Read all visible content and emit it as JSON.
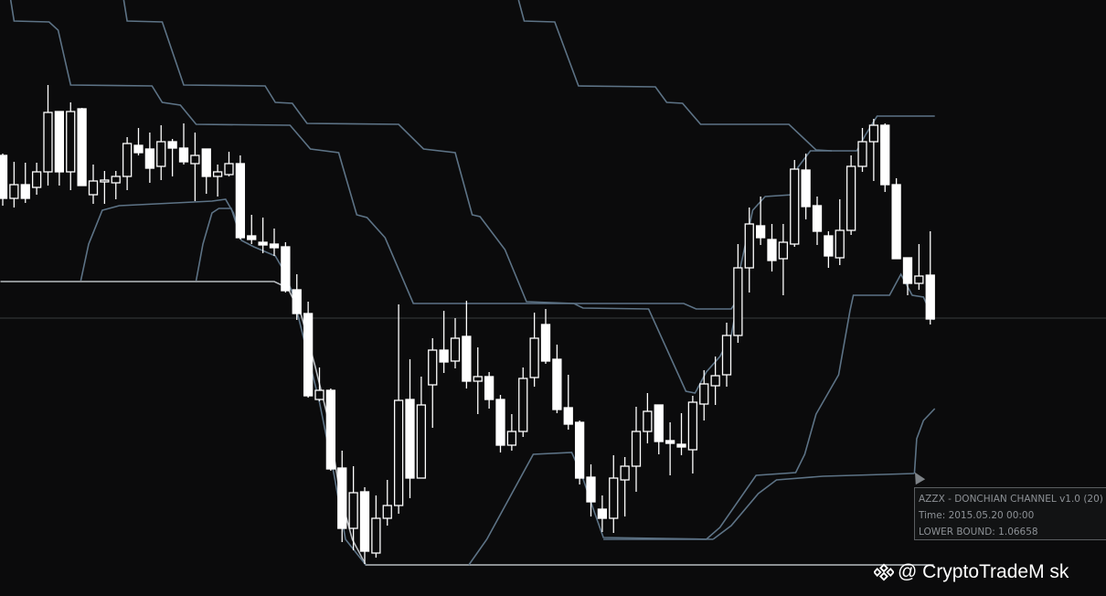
{
  "tooltip": {
    "title": "AZZX - DONCHIAN CHANNEL v1.0 (20)",
    "time": "Time: 2015.05.20 00:00",
    "lower_bound": "LOWER BOUND: 1.06658"
  },
  "watermark": {
    "icon": "binance-diamond-icon",
    "text": "@ CryptoTradeM  sk"
  },
  "colors": {
    "background": "#0b0b0c",
    "candle": "#ffffff",
    "band": "#5d7386",
    "base_line": "#b8bcc0",
    "price_line": "#3a3c3e"
  },
  "chart_data": {
    "type": "candlestick",
    "grid": false,
    "legend": "none",
    "x_unit": "bar index",
    "ylim": [
      1.0534,
      1.1186
    ],
    "price_line": 1.0838,
    "candles_ohlc": [
      [
        1.1016,
        1.1018,
        1.0961,
        1.0969
      ],
      [
        1.0969,
        1.1009,
        1.0959,
        1.0984
      ],
      [
        1.0984,
        1.1008,
        1.0964,
        1.0969
      ],
      [
        1.0981,
        1.1008,
        1.0973,
        1.0998
      ],
      [
        1.0998,
        1.1093,
        1.0983,
        1.1063
      ],
      [
        1.1064,
        1.1064,
        1.0983,
        1.0998
      ],
      [
        1.0998,
        1.1074,
        1.0978,
        1.1064
      ],
      [
        1.1067,
        1.1068,
        1.0983,
        1.0983
      ],
      [
        1.0973,
        1.1006,
        1.0963,
        1.0988
      ],
      [
        1.0987,
        1.0999,
        1.0963,
        1.0989
      ],
      [
        1.0986,
        1.0999,
        1.0968,
        1.0993
      ],
      [
        1.0993,
        1.1036,
        1.0978,
        1.1029
      ],
      [
        1.1027,
        1.1046,
        1.1016,
        1.1019
      ],
      [
        1.1023,
        1.1041,
        1.0986,
        1.1002
      ],
      [
        1.1004,
        1.1049,
        1.0989,
        1.1031
      ],
      [
        1.1031,
        1.1034,
        1.0993,
        1.1024
      ],
      [
        1.1024,
        1.1051,
        1.1006,
        1.1009
      ],
      [
        1.1007,
        1.1041,
        1.0966,
        1.1016
      ],
      [
        1.1023,
        1.1023,
        1.0974,
        1.0993
      ],
      [
        1.0993,
        1.1006,
        1.0971,
        1.0998
      ],
      [
        1.0995,
        1.102,
        1.0993,
        1.1007
      ],
      [
        1.1007,
        1.1016,
        1.0924,
        1.0926
      ],
      [
        1.0928,
        1.0951,
        1.0919,
        1.0924
      ],
      [
        1.0921,
        1.0948,
        1.0909,
        1.0918
      ],
      [
        1.0919,
        1.0936,
        1.0906,
        1.0915
      ],
      [
        1.0916,
        1.0921,
        1.0866,
        1.0868
      ],
      [
        1.0869,
        1.0886,
        1.0836,
        1.0843
      ],
      [
        1.0843,
        1.0856,
        1.0751,
        1.0753
      ],
      [
        1.0749,
        1.0784,
        1.0747,
        1.0759
      ],
      [
        1.0759,
        1.0761,
        1.0671,
        1.0673
      ],
      [
        1.0674,
        1.0693,
        1.0593,
        1.0608
      ],
      [
        1.0608,
        1.0676,
        1.0584,
        1.0647
      ],
      [
        1.0648,
        1.0653,
        1.0569,
        1.0583
      ],
      [
        1.0581,
        1.0644,
        1.0576,
        1.0619
      ],
      [
        1.0619,
        1.0661,
        1.0611,
        1.0633
      ],
      [
        1.0633,
        1.0853,
        1.0624,
        1.0748
      ],
      [
        1.0749,
        1.0793,
        1.0641,
        1.0663
      ],
      [
        1.0663,
        1.0774,
        1.0663,
        1.0743
      ],
      [
        1.0765,
        1.0816,
        1.0718,
        1.0803
      ],
      [
        1.0803,
        1.0846,
        1.0778,
        1.079
      ],
      [
        1.0791,
        1.0838,
        1.0783,
        1.0816
      ],
      [
        1.0818,
        1.0857,
        1.0761,
        1.0769
      ],
      [
        1.0769,
        1.0806,
        1.0733,
        1.0774
      ],
      [
        1.0774,
        1.0779,
        1.0739,
        1.0749
      ],
      [
        1.0749,
        1.0754,
        1.0691,
        1.0699
      ],
      [
        1.0699,
        1.0733,
        1.0693,
        1.0714
      ],
      [
        1.0714,
        1.0784,
        1.0708,
        1.0772
      ],
      [
        1.0773,
        1.0844,
        1.0763,
        1.0816
      ],
      [
        1.0831,
        1.0848,
        1.0788,
        1.0791
      ],
      [
        1.0793,
        1.0809,
        1.0734,
        1.0738
      ],
      [
        1.074,
        1.0776,
        1.0716,
        1.0722
      ],
      [
        1.0724,
        1.0726,
        1.0656,
        1.0663
      ],
      [
        1.0664,
        1.0678,
        1.0621,
        1.0637
      ],
      [
        1.0629,
        1.0644,
        1.0604,
        1.0619
      ],
      [
        1.0619,
        1.0688,
        1.0603,
        1.0663
      ],
      [
        1.0661,
        1.0686,
        1.0621,
        1.0676
      ],
      [
        1.0676,
        1.0741,
        1.0648,
        1.0714
      ],
      [
        1.0714,
        1.0756,
        1.0701,
        1.0736
      ],
      [
        1.0743,
        1.0743,
        1.0689,
        1.0703
      ],
      [
        1.0704,
        1.0724,
        1.0666,
        1.0701
      ],
      [
        1.07,
        1.0734,
        1.0688,
        1.0697
      ],
      [
        1.0694,
        1.0753,
        1.0668,
        1.0746
      ],
      [
        1.0744,
        1.0781,
        1.0726,
        1.0766
      ],
      [
        1.0764,
        1.0796,
        1.0743,
        1.0775
      ],
      [
        1.0776,
        1.0833,
        1.0763,
        1.0819
      ],
      [
        1.0819,
        1.0919,
        1.0811,
        1.0893
      ],
      [
        1.0893,
        1.0959,
        1.0866,
        1.0941
      ],
      [
        1.0939,
        1.0971,
        1.0918,
        1.0926
      ],
      [
        1.0924,
        1.0941,
        1.0889,
        1.0901
      ],
      [
        1.0903,
        1.0941,
        1.0863,
        1.0921
      ],
      [
        1.0919,
        1.1011,
        1.0916,
        1.1001
      ],
      [
        1.1,
        1.1018,
        1.0946,
        1.096
      ],
      [
        1.0961,
        1.0971,
        1.0918,
        1.0933
      ],
      [
        1.0928,
        1.0933,
        1.0893,
        1.0906
      ],
      [
        1.0904,
        1.0968,
        1.0896,
        1.0934
      ],
      [
        1.0934,
        1.1016,
        1.0929,
        1.1004
      ],
      [
        1.1004,
        1.1046,
        1.0998,
        1.1031
      ],
      [
        1.1031,
        1.1056,
        1.0988,
        1.1049
      ],
      [
        1.1049,
        1.1051,
        1.0976,
        1.0984
      ],
      [
        1.0984,
        1.0991,
        1.0903,
        1.0903
      ],
      [
        1.0904,
        1.0904,
        1.0863,
        1.0876
      ],
      [
        1.0876,
        1.0919,
        1.0869,
        1.0884
      ],
      [
        1.0885,
        1.0933,
        1.0831,
        1.0837
      ]
    ],
    "band_lines": [
      {
        "kind": "upper",
        "points": [
          [
            0.7,
            1.1186
          ],
          [
            1.0,
            1.1163
          ],
          [
            4.1,
            1.1162
          ],
          [
            4.9,
            1.1153
          ],
          [
            6.0,
            1.1093
          ],
          [
            13.2,
            1.1092
          ],
          [
            14.1,
            1.1074
          ],
          [
            15.7,
            1.1071
          ],
          [
            17.1,
            1.105
          ],
          [
            25.4,
            1.1049
          ],
          [
            27.2,
            1.1023
          ],
          [
            29.7,
            1.1019
          ],
          [
            31.3,
            1.0951
          ],
          [
            32.2,
            1.0948
          ],
          [
            33.8,
            1.0926
          ],
          [
            36.3,
            1.0854
          ],
          [
            60.2,
            1.0854
          ],
          [
            61.3,
            1.0848
          ],
          [
            64.4,
            1.0848
          ],
          [
            65.0,
            1.0859
          ],
          [
            65.2,
            1.0893
          ],
          [
            66.3,
            1.0956
          ],
          [
            67.4,
            1.0971
          ],
          [
            69.8,
            1.0973
          ],
          [
            70.3,
            1.1003
          ],
          [
            71.4,
            1.1021
          ],
          [
            75.5,
            1.1021
          ],
          [
            76.3,
            1.1039
          ],
          [
            77.3,
            1.1059
          ],
          [
            82.4,
            1.1059
          ]
        ]
      },
      {
        "kind": "upper",
        "points": [
          [
            10.7,
            1.1186
          ],
          [
            11.0,
            1.1163
          ],
          [
            14.1,
            1.1162
          ],
          [
            16.0,
            1.1093
          ],
          [
            23.2,
            1.1092
          ],
          [
            24.1,
            1.1074
          ],
          [
            25.6,
            1.1073
          ],
          [
            26.9,
            1.1051
          ],
          [
            35.0,
            1.105
          ],
          [
            37.2,
            1.1023
          ],
          [
            40.0,
            1.1019
          ],
          [
            41.5,
            1.0951
          ],
          [
            42.2,
            1.0949
          ],
          [
            44.4,
            1.0913
          ],
          [
            46.3,
            1.0856
          ],
          [
            50.5,
            1.0854
          ],
          [
            51.3,
            1.0849
          ],
          [
            57.1,
            1.0848
          ],
          [
            60.4,
            1.0758
          ],
          [
            61.2,
            1.0756
          ],
          [
            62.2,
            1.0779
          ],
          [
            63.4,
            1.0796
          ],
          [
            64.4,
            1.0819
          ],
          [
            65.0,
            1.0859
          ]
        ]
      },
      {
        "kind": "upper",
        "points": [
          [
            45.6,
            1.1186
          ],
          [
            46.1,
            1.1163
          ],
          [
            48.8,
            1.1162
          ],
          [
            50.9,
            1.1092
          ],
          [
            57.7,
            1.1091
          ],
          [
            58.7,
            1.1074
          ],
          [
            60.1,
            1.1073
          ],
          [
            61.7,
            1.105
          ],
          [
            69.5,
            1.105
          ],
          [
            71.9,
            1.1022
          ],
          [
            73.3,
            1.1021
          ]
        ]
      },
      {
        "kind": "lower",
        "points": [
          [
            6.9,
            1.0879
          ],
          [
            7.6,
            1.0919
          ],
          [
            8.8,
            1.0956
          ],
          [
            10.3,
            1.0961
          ],
          [
            18.5,
            1.0966
          ],
          [
            19.7,
            1.0968
          ],
          [
            20.4,
            1.0953
          ],
          [
            21.1,
            1.0923
          ],
          [
            22.2,
            1.0916
          ],
          [
            24.1,
            1.0906
          ],
          [
            24.7,
            1.0893
          ],
          [
            25.6,
            1.0866
          ],
          [
            26.8,
            1.0806
          ],
          [
            28.0,
            1.0746
          ],
          [
            29.3,
            1.0666
          ],
          [
            30.3,
            1.0596
          ],
          [
            32.1,
            1.0568
          ]
        ]
      },
      {
        "kind": "lower",
        "points": [
          [
            17.1,
            1.0879
          ],
          [
            17.7,
            1.0919
          ],
          [
            18.5,
            1.0953
          ],
          [
            19.1,
            1.0958
          ],
          [
            20.2,
            1.0958
          ],
          [
            21.0,
            1.0928
          ]
        ]
      },
      {
        "kind": "lower",
        "points": [
          [
            41.2,
            1.0568
          ],
          [
            42.8,
            1.0596
          ],
          [
            45.0,
            1.0646
          ],
          [
            46.9,
            1.0689
          ],
          [
            50.3,
            1.0691
          ],
          [
            51.2,
            1.0666
          ],
          [
            52.3,
            1.0626
          ],
          [
            53.1,
            1.0598
          ],
          [
            62.8,
            1.0596
          ]
        ]
      },
      {
        "kind": "lower",
        "points": [
          [
            53.1,
            1.0596
          ],
          [
            62.2,
            1.0596
          ],
          [
            63.4,
            1.0609
          ],
          [
            66.6,
            1.0666
          ],
          [
            70.1,
            1.0669
          ],
          [
            70.9,
            1.0689
          ],
          [
            71.9,
            1.0733
          ],
          [
            73.9,
            1.0776
          ],
          [
            74.9,
            1.0846
          ],
          [
            75.2,
            1.0863
          ],
          [
            78.4,
            1.0863
          ],
          [
            79.4,
            1.0886
          ],
          [
            80.4,
            1.0863
          ],
          [
            81.4,
            1.0861
          ],
          [
            82.3,
            1.0836
          ]
        ]
      },
      {
        "kind": "lower",
        "points": [
          [
            62.8,
            1.0596
          ],
          [
            64.4,
            1.0611
          ],
          [
            66.8,
            1.0646
          ],
          [
            68.4,
            1.0661
          ],
          [
            72.5,
            1.0665
          ],
          [
            80.6,
            1.0668
          ]
        ]
      },
      {
        "kind": "lower",
        "points": [
          [
            80.6,
            1.0668
          ],
          [
            80.8,
            1.0706
          ],
          [
            81.4,
            1.0726
          ],
          [
            82.4,
            1.0739
          ]
        ]
      }
    ],
    "base_lines": [
      {
        "points": [
          [
            -0.2,
            1.0878
          ],
          [
            24.0,
            1.0878
          ],
          [
            25.2,
            1.0871
          ],
          [
            26.4,
            1.0841
          ],
          [
            27.6,
            1.0786
          ],
          [
            28.8,
            1.0726
          ],
          [
            29.8,
            1.0646
          ],
          [
            30.9,
            1.0596
          ],
          [
            32.1,
            1.0568
          ],
          [
            82.3,
            1.0568
          ]
        ]
      }
    ]
  }
}
